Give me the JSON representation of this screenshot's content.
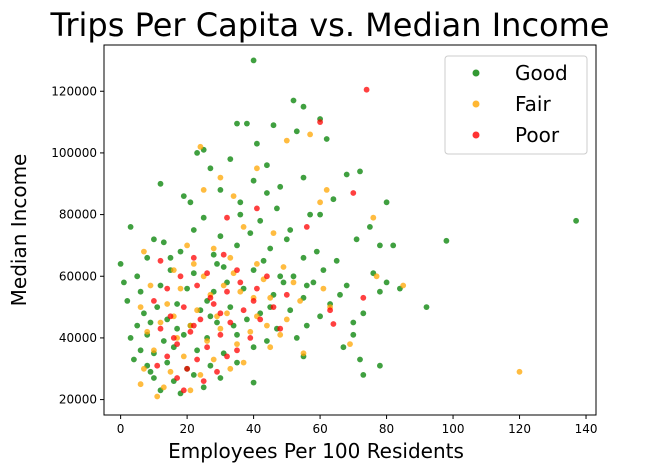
{
  "chart_data": {
    "type": "scatter",
    "title": "Trips Per Capita vs. Median Income",
    "xlabel": "Employees Per 100 Residents",
    "ylabel": "Median Income",
    "xlim": [
      -5,
      143
    ],
    "ylim": [
      15000,
      135000
    ],
    "xticks": [
      0,
      20,
      40,
      60,
      80,
      100,
      120,
      140
    ],
    "yticks": [
      20000,
      40000,
      60000,
      80000,
      100000,
      120000
    ],
    "xtick_labels": [
      "0",
      "20",
      "40",
      "60",
      "80",
      "100",
      "120",
      "140"
    ],
    "ytick_labels": [
      "20000",
      "40000",
      "60000",
      "80000",
      "100000",
      "120000"
    ],
    "grid": false,
    "legend_position": "top-right",
    "series": [
      {
        "name": "Good",
        "color": "#008000",
        "points": [
          [
            40,
            130000
          ],
          [
            52,
            117000
          ],
          [
            60,
            111000
          ],
          [
            55,
            115000
          ],
          [
            35,
            109500
          ],
          [
            38,
            109500
          ],
          [
            46,
            109000
          ],
          [
            25,
            101000
          ],
          [
            41,
            103000
          ],
          [
            53,
            107000
          ],
          [
            62,
            104500
          ],
          [
            33,
            98000
          ],
          [
            23,
            100000
          ],
          [
            44,
            96000
          ],
          [
            27,
            95000
          ],
          [
            55,
            92000
          ],
          [
            68,
            93000
          ],
          [
            72,
            94000
          ],
          [
            12,
            90000
          ],
          [
            40,
            91000
          ],
          [
            30,
            88000
          ],
          [
            48,
            89000
          ],
          [
            64,
            85000
          ],
          [
            19,
            86000
          ],
          [
            36,
            84000
          ],
          [
            57,
            80000
          ],
          [
            60,
            80000
          ],
          [
            80,
            84000
          ],
          [
            3,
            76000
          ],
          [
            25,
            79000
          ],
          [
            42,
            78000
          ],
          [
            75,
            76000
          ],
          [
            137,
            78000
          ],
          [
            10,
            72000
          ],
          [
            30,
            73000
          ],
          [
            50,
            72000
          ],
          [
            71,
            72000
          ],
          [
            98,
            71500
          ],
          [
            78,
            70000
          ],
          [
            82,
            70000
          ],
          [
            0,
            64000
          ],
          [
            8,
            66000
          ],
          [
            18,
            68000
          ],
          [
            28,
            67000
          ],
          [
            35,
            70000
          ],
          [
            45,
            69000
          ],
          [
            55,
            66000
          ],
          [
            65,
            65000
          ],
          [
            76,
            61000
          ],
          [
            1,
            58000
          ],
          [
            5,
            60000
          ],
          [
            15,
            62000
          ],
          [
            22,
            61000
          ],
          [
            31,
            63000
          ],
          [
            40,
            62000
          ],
          [
            48,
            60000
          ],
          [
            58,
            58000
          ],
          [
            68,
            57000
          ],
          [
            80,
            58000
          ],
          [
            2,
            52000
          ],
          [
            6,
            55000
          ],
          [
            12,
            57000
          ],
          [
            20,
            56000
          ],
          [
            28,
            55000
          ],
          [
            37,
            56000
          ],
          [
            46,
            54000
          ],
          [
            55,
            53000
          ],
          [
            66,
            54000
          ],
          [
            78,
            55000
          ],
          [
            7,
            48000
          ],
          [
            11,
            50000
          ],
          [
            17,
            51000
          ],
          [
            24,
            49000
          ],
          [
            33,
            50000
          ],
          [
            42,
            48000
          ],
          [
            51,
            49000
          ],
          [
            60,
            47000
          ],
          [
            73,
            48000
          ],
          [
            92,
            50000
          ],
          [
            5,
            44000
          ],
          [
            9,
            45000
          ],
          [
            14,
            46000
          ],
          [
            21,
            44000
          ],
          [
            29,
            45000
          ],
          [
            38,
            46000
          ],
          [
            47,
            43000
          ],
          [
            56,
            44000
          ],
          [
            3,
            40000
          ],
          [
            8,
            41000
          ],
          [
            13,
            39000
          ],
          [
            19,
            41000
          ],
          [
            26,
            40000
          ],
          [
            35,
            41000
          ],
          [
            44,
            39000
          ],
          [
            53,
            40000
          ],
          [
            70,
            41000
          ],
          [
            6,
            36000
          ],
          [
            10,
            35000
          ],
          [
            16,
            37000
          ],
          [
            23,
            36000
          ],
          [
            31,
            35000
          ],
          [
            40,
            37000
          ],
          [
            55,
            34000
          ],
          [
            67,
            37000
          ],
          [
            8,
            31000
          ],
          [
            14,
            32000
          ],
          [
            20,
            30000
          ],
          [
            27,
            31000
          ],
          [
            35,
            32000
          ],
          [
            72,
            33000
          ],
          [
            78,
            31000
          ],
          [
            10,
            27000
          ],
          [
            16,
            26000
          ],
          [
            22,
            28000
          ],
          [
            30,
            27000
          ],
          [
            40,
            25500
          ],
          [
            73,
            28000
          ],
          [
            12,
            23000
          ],
          [
            18,
            22000
          ],
          [
            25,
            24000
          ],
          [
            9,
            29000
          ],
          [
            17,
            43000
          ],
          [
            27,
            47000
          ],
          [
            32,
            58000
          ],
          [
            43,
            65000
          ],
          [
            52,
            60000
          ],
          [
            61,
            62000
          ],
          [
            22,
            75000
          ],
          [
            36,
            80000
          ],
          [
            47,
            82000
          ],
          [
            15,
            66000
          ],
          [
            39,
            74000
          ],
          [
            26,
            52000
          ],
          [
            34,
            44000
          ],
          [
            45,
            50000
          ],
          [
            56,
            57000
          ],
          [
            63,
            51000
          ],
          [
            70,
            45000
          ],
          [
            84,
            56000
          ],
          [
            4,
            33000
          ],
          [
            21,
            84000
          ],
          [
            44,
            87000
          ],
          [
            51,
            75000
          ],
          [
            29,
            64000
          ],
          [
            13,
            71000
          ],
          [
            59,
            68000
          ],
          [
            49,
            58000
          ]
        ]
      },
      {
        "name": "Fair",
        "color": "#ffa500",
        "points": [
          [
            24,
            102000
          ],
          [
            50,
            104000
          ],
          [
            57,
            106000
          ],
          [
            30,
            92000
          ],
          [
            41,
            95000
          ],
          [
            25,
            88000
          ],
          [
            34,
            86000
          ],
          [
            62,
            88000
          ],
          [
            76,
            79000
          ],
          [
            37,
            76000
          ],
          [
            46,
            74000
          ],
          [
            20,
            70000
          ],
          [
            28,
            69000
          ],
          [
            7,
            68000
          ],
          [
            33,
            66000
          ],
          [
            41,
            64000
          ],
          [
            49,
            63000
          ],
          [
            16,
            62000
          ],
          [
            25,
            60000
          ],
          [
            34,
            61000
          ],
          [
            43,
            59000
          ],
          [
            52,
            58000
          ],
          [
            61,
            56000
          ],
          [
            77,
            60000
          ],
          [
            9,
            57000
          ],
          [
            18,
            56000
          ],
          [
            27,
            54000
          ],
          [
            36,
            55000
          ],
          [
            45,
            53000
          ],
          [
            54,
            52000
          ],
          [
            63,
            50000
          ],
          [
            6,
            50000
          ],
          [
            14,
            51000
          ],
          [
            23,
            49000
          ],
          [
            32,
            48000
          ],
          [
            41,
            47000
          ],
          [
            50,
            46000
          ],
          [
            12,
            45000
          ],
          [
            21,
            44000
          ],
          [
            30,
            43000
          ],
          [
            39,
            42000
          ],
          [
            48,
            41000
          ],
          [
            8,
            42000
          ],
          [
            17,
            40000
          ],
          [
            26,
            39000
          ],
          [
            35,
            38000
          ],
          [
            45,
            37000
          ],
          [
            55,
            35000
          ],
          [
            69,
            38000
          ],
          [
            10,
            36000
          ],
          [
            19,
            34000
          ],
          [
            28,
            33000
          ],
          [
            37,
            32000
          ],
          [
            7,
            30000
          ],
          [
            15,
            29000
          ],
          [
            24,
            28000
          ],
          [
            33,
            30000
          ],
          [
            6,
            25000
          ],
          [
            13,
            24000
          ],
          [
            21,
            23000
          ],
          [
            11,
            21000
          ],
          [
            120,
            29000
          ],
          [
            85,
            57000
          ],
          [
            60,
            84000
          ],
          [
            22,
            64000
          ],
          [
            31,
            57000
          ],
          [
            40,
            53000
          ],
          [
            29,
            47000
          ],
          [
            16,
            47000
          ],
          [
            44,
            44000
          ]
        ]
      },
      {
        "name": "Poor",
        "color": "#ff0000",
        "points": [
          [
            74,
            120500
          ],
          [
            60,
            110000
          ],
          [
            70,
            87000
          ],
          [
            41,
            82000
          ],
          [
            32,
            79000
          ],
          [
            56,
            76000
          ],
          [
            12,
            65000
          ],
          [
            22,
            66000
          ],
          [
            31,
            67000
          ],
          [
            18,
            60000
          ],
          [
            26,
            61000
          ],
          [
            35,
            62000
          ],
          [
            44,
            60000
          ],
          [
            14,
            56000
          ],
          [
            23,
            57000
          ],
          [
            32,
            55000
          ],
          [
            41,
            56000
          ],
          [
            50,
            54000
          ],
          [
            73,
            53000
          ],
          [
            10,
            52000
          ],
          [
            19,
            50000
          ],
          [
            28,
            51000
          ],
          [
            37,
            49000
          ],
          [
            46,
            50000
          ],
          [
            15,
            47000
          ],
          [
            24,
            46000
          ],
          [
            33,
            45000
          ],
          [
            42,
            46000
          ],
          [
            12,
            43000
          ],
          [
            21,
            42000
          ],
          [
            30,
            41000
          ],
          [
            39,
            40000
          ],
          [
            48,
            43000
          ],
          [
            17,
            38000
          ],
          [
            26,
            37000
          ],
          [
            35,
            36000
          ],
          [
            14,
            34000
          ],
          [
            23,
            33000
          ],
          [
            32,
            34000
          ],
          [
            11,
            31000
          ],
          [
            20,
            30000
          ],
          [
            29,
            29000
          ],
          [
            17,
            27000
          ],
          [
            25,
            26000
          ],
          [
            19,
            23000
          ],
          [
            63,
            49000
          ],
          [
            64,
            44500
          ],
          [
            27,
            53000
          ],
          [
            36,
            58000
          ],
          [
            22,
            44000
          ],
          [
            40,
            52000
          ],
          [
            30,
            48000
          ],
          [
            16,
            40000
          ]
        ]
      }
    ]
  }
}
